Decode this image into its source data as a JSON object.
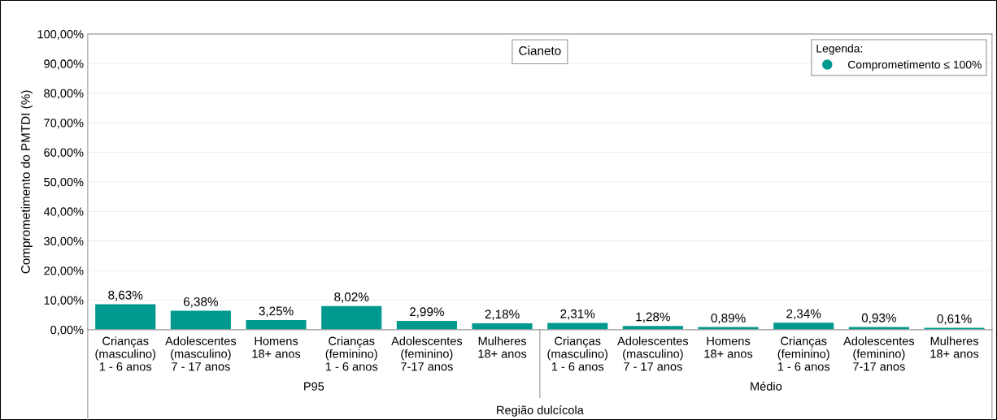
{
  "chart_data": {
    "type": "bar",
    "title": "Cianeto",
    "ylabel": "Comprometimento do PMTDI (%)",
    "xlabel": "Região dulcícola",
    "legend_title": "Legenda:",
    "categories": [
      "Crianças\n(masculino)\n1 - 6 anos",
      "Adolescentes\n(masculino)\n7 - 17 anos",
      "Homens\n18+ anos",
      "Crianças\n(feminino)\n1 - 6 anos",
      "Adolescentes\n(feminino)\n7-17 anos",
      "Mulheres\n18+ anos",
      "Crianças\n(masculino)\n1 - 6 anos",
      "Adolescentes\n(masculino)\n7 - 17 anos",
      "Homens\n18+ anos",
      "Crianças\n(feminino)\n1 - 6 anos",
      "Adolescentes\n(feminino)\n7-17 anos",
      "Mulheres\n18+ anos"
    ],
    "series": [
      {
        "name": "Comprometimento ≤ 100%",
        "color": "#009990",
        "values": [
          8.63,
          6.38,
          3.25,
          8.02,
          2.99,
          2.18,
          2.31,
          1.28,
          0.89,
          2.34,
          0.93,
          0.61
        ],
        "value_labels": [
          "8,63%",
          "6,38%",
          "3,25%",
          "8,02%",
          "2,99%",
          "2,18%",
          "2,31%",
          "1,28%",
          "0,89%",
          "2,34%",
          "0,93%",
          "0,61%"
        ]
      }
    ],
    "annotations": [
      "P95",
      "Médio"
    ],
    "ylim": [
      0,
      100
    ],
    "yticks": [
      {
        "value": 0,
        "label": "0,00%"
      },
      {
        "value": 10,
        "label": "10,00%"
      },
      {
        "value": 20,
        "label": "20,00%"
      },
      {
        "value": 30,
        "label": "30,00%"
      },
      {
        "value": 40,
        "label": "40,00%"
      },
      {
        "value": 50,
        "label": "50,00%"
      },
      {
        "value": 60,
        "label": "60,00%"
      },
      {
        "value": 70,
        "label": "70,00%"
      },
      {
        "value": 80,
        "label": "80,00%"
      },
      {
        "value": 90,
        "label": "90,00%"
      },
      {
        "value": 100,
        "label": "100,00%"
      }
    ],
    "grid": "y",
    "legend": "top right",
    "marker": "circle"
  }
}
